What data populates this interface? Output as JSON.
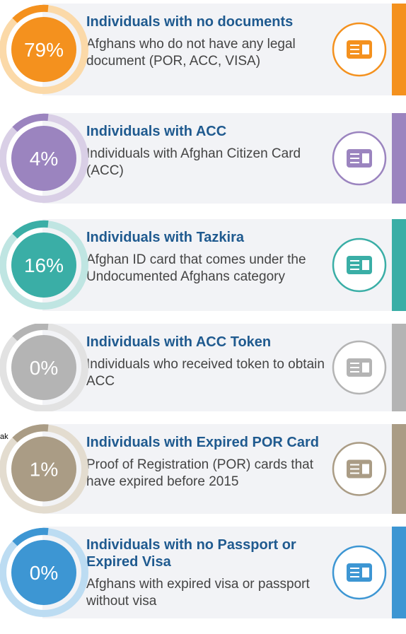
{
  "fragment": "ak",
  "items": [
    {
      "percent": "79%",
      "title": "Individuals with no documents",
      "description": "Afghans who do not have any legal document (POR, ACC, VISA)",
      "color": "#f4911e",
      "light": "#fbd9a8"
    },
    {
      "percent": "4%",
      "title": "Individuals with ACC",
      "description": "Individuals with Afghan Citizen Card (ACC)",
      "color": "#9b84bf",
      "light": "#d9cfe6"
    },
    {
      "percent": "16%",
      "title": "Individuals with Tazkira",
      "description": "Afghan ID card that comes under the Undocumented Afghans category",
      "color": "#3aaea6",
      "light": "#bfe5e2"
    },
    {
      "percent": "0%",
      "title": "Individuals with ACC Token",
      "description": "Individuals who received token to obtain ACC",
      "color": "#b4b4b4",
      "light": "#e2e2e2"
    },
    {
      "percent": "1%",
      "title": "Individuals with Expired POR Card",
      "description": "Proof of Registration (POR) cards that have expired before 2015",
      "color": "#aa9c85",
      "light": "#e3dccf"
    },
    {
      "percent": "0%",
      "title": "Individuals with no Passport or Expired Visa",
      "description": "Afghans with expired visa or passport without visa",
      "color": "#3d96d3",
      "light": "#bcdcf2"
    }
  ]
}
